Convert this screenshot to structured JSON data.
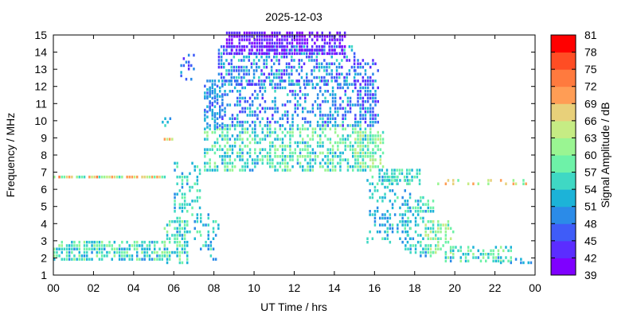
{
  "chart_data": {
    "type": "heatmap",
    "title": "2025-12-03",
    "xlabel": "UT Time / hrs",
    "ylabel": "Frequency / MHz",
    "xlim": [
      0,
      24
    ],
    "ylim": [
      1,
      15
    ],
    "x_ticks": [
      "00",
      "02",
      "04",
      "06",
      "08",
      "10",
      "12",
      "14",
      "16",
      "18",
      "20",
      "22",
      "00"
    ],
    "y_ticks": [
      "1",
      "2",
      "3",
      "4",
      "5",
      "6",
      "7",
      "8",
      "9",
      "10",
      "11",
      "12",
      "13",
      "14",
      "15"
    ],
    "colorbar": {
      "label": "Signal Amplitude / dB",
      "min": 39,
      "max": 81,
      "ticks": [
        "39",
        "42",
        "45",
        "48",
        "51",
        "54",
        "57",
        "60",
        "63",
        "66",
        "69",
        "72",
        "75",
        "78",
        "81"
      ],
      "colors": [
        "#7f00ff",
        "#5b2dff",
        "#3f5cf8",
        "#2b8be8",
        "#1cb3d8",
        "#3fd8c4",
        "#6ef2a8",
        "#9af592",
        "#c6ec84",
        "#e8d07a",
        "#ff9d55",
        "#ff7a3e",
        "#ff4d24",
        "#ff0000"
      ]
    },
    "regions": [
      {
        "t": [
          0.0,
          5.6
        ],
        "f": [
          1.8,
          3.0
        ],
        "amp": [
          50,
          62
        ],
        "density": 0.7
      },
      {
        "t": [
          0.0,
          5.6
        ],
        "f": [
          6.6,
          6.8
        ],
        "amp": [
          55,
          74
        ],
        "density": 0.85
      },
      {
        "t": [
          5.5,
          6.7
        ],
        "f": [
          1.6,
          4.2
        ],
        "amp": [
          50,
          62
        ],
        "density": 0.55
      },
      {
        "t": [
          5.5,
          6.0
        ],
        "f": [
          8.8,
          9.0
        ],
        "amp": [
          63,
          72
        ],
        "density": 0.9
      },
      {
        "t": [
          5.4,
          5.9
        ],
        "f": [
          9.6,
          10.0
        ],
        "amp": [
          50,
          56
        ],
        "density": 0.5
      },
      {
        "t": [
          6.0,
          7.3
        ],
        "f": [
          3.0,
          7.6
        ],
        "amp": [
          50,
          60
        ],
        "density": 0.35
      },
      {
        "t": [
          6.2,
          7.0
        ],
        "f": [
          12.3,
          13.7
        ],
        "amp": [
          42,
          55
        ],
        "density": 0.25
      },
      {
        "t": [
          7.3,
          8.3
        ],
        "f": [
          1.8,
          4.5
        ],
        "amp": [
          48,
          58
        ],
        "density": 0.25
      },
      {
        "t": [
          7.5,
          16.0
        ],
        "f": [
          7.0,
          9.6
        ],
        "amp": [
          50,
          63
        ],
        "density": 0.55
      },
      {
        "t": [
          7.5,
          16.0
        ],
        "f": [
          9.6,
          12.3
        ],
        "amp": [
          44,
          55
        ],
        "density": 0.4
      },
      {
        "t": [
          7.5,
          8.5
        ],
        "f": [
          9.5,
          12.0
        ],
        "amp": [
          45,
          54
        ],
        "density": 0.45
      },
      {
        "t": [
          8.2,
          15.0
        ],
        "f": [
          12.0,
          14.2
        ],
        "amp": [
          42,
          56
        ],
        "density": 0.55
      },
      {
        "t": [
          8.6,
          14.6
        ],
        "f": [
          13.8,
          15.0
        ],
        "amp": [
          39,
          45
        ],
        "density": 0.7
      },
      {
        "t": [
          15.0,
          16.2
        ],
        "f": [
          9.8,
          13.5
        ],
        "amp": [
          42,
          52
        ],
        "density": 0.4
      },
      {
        "t": [
          15.0,
          16.5
        ],
        "f": [
          7.2,
          9.2
        ],
        "amp": [
          55,
          65
        ],
        "density": 0.6
      },
      {
        "t": [
          15.6,
          17.8
        ],
        "f": [
          2.8,
          6.8
        ],
        "amp": [
          48,
          58
        ],
        "density": 0.3
      },
      {
        "t": [
          16.2,
          18.3
        ],
        "f": [
          6.2,
          7.2
        ],
        "amp": [
          52,
          60
        ],
        "density": 0.6
      },
      {
        "t": [
          17.5,
          19.0
        ],
        "f": [
          2.0,
          5.5
        ],
        "amp": [
          50,
          60
        ],
        "density": 0.4
      },
      {
        "t": [
          18.5,
          20.0
        ],
        "f": [
          2.2,
          4.2
        ],
        "amp": [
          55,
          66
        ],
        "density": 0.55
      },
      {
        "t": [
          19.5,
          22.8
        ],
        "f": [
          1.7,
          2.6
        ],
        "amp": [
          50,
          62
        ],
        "density": 0.5
      },
      {
        "t": [
          19.0,
          24.0
        ],
        "f": [
          6.2,
          6.6
        ],
        "amp": [
          58,
          72
        ],
        "density": 0.3
      },
      {
        "t": [
          22.0,
          24.0
        ],
        "f": [
          1.6,
          1.9
        ],
        "amp": [
          48,
          54
        ],
        "density": 0.15
      }
    ]
  }
}
